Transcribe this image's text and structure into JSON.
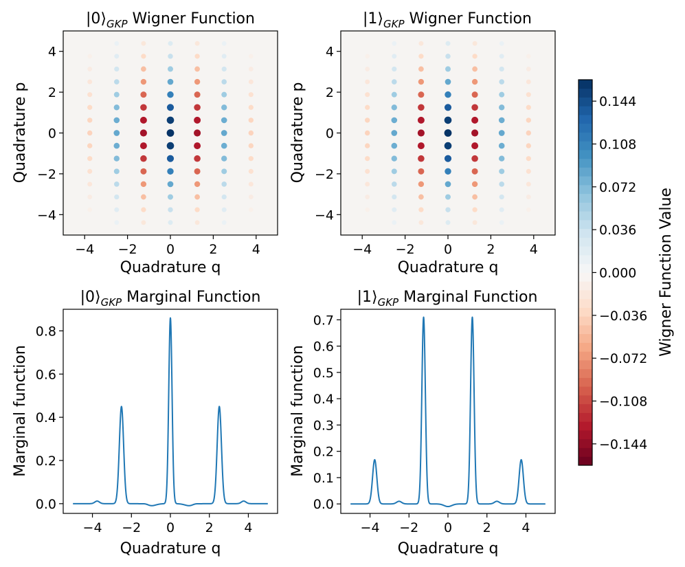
{
  "chart_data": [
    {
      "type": "heatmap",
      "title": "|0⟩GKP Wigner Function",
      "title_main": "|0⟩",
      "title_sub": "GKP",
      "title_rest": " Wigner Function",
      "xlabel": "Quadrature q",
      "ylabel": "Quadrature p",
      "xlim": [
        -5,
        5
      ],
      "ylim": [
        -5,
        5
      ],
      "xticks": [
        -4,
        -2,
        0,
        2,
        4
      ],
      "yticks": [
        -4,
        -2,
        0,
        2,
        4
      ],
      "q_period": 1.2533,
      "p_period": 0.6267,
      "envelope_sigma": 2.2,
      "peak_value": 0.16,
      "row_sign": "positive at even p-index",
      "column_sign": "positive at even q-index",
      "q_offset": 0
    },
    {
      "type": "heatmap",
      "title": "|1⟩GKP Wigner Function",
      "title_main": "|1⟩",
      "title_sub": "GKP",
      "title_rest": " Wigner Function",
      "xlabel": "Quadrature q",
      "ylabel": "Quadrature p",
      "xlim": [
        -5,
        5
      ],
      "ylim": [
        -5,
        5
      ],
      "xticks": [
        -4,
        -2,
        0,
        2,
        4
      ],
      "yticks": [
        -4,
        -2,
        0,
        2,
        4
      ],
      "q_period": 1.2533,
      "p_period": 0.6267,
      "envelope_sigma": 2.2,
      "peak_value": 0.16,
      "row_sign": "sign alternates with p-index",
      "column_sign": "q shifted so peaks at odd multiples",
      "q_offset": 0
    },
    {
      "type": "line",
      "title": "|0⟩GKP Marginal Function",
      "title_main": "|0⟩",
      "title_sub": "GKP",
      "title_rest": " Marginal Function",
      "xlabel": "Quadrature q",
      "ylabel": "Marginal function",
      "xlim": [
        -5.5,
        5.5
      ],
      "ylim": [
        -0.045,
        0.9
      ],
      "xticks": [
        -4,
        -2,
        0,
        2,
        4
      ],
      "yticks": [
        0.0,
        0.2,
        0.4,
        0.6,
        0.8
      ],
      "ytick_labels": [
        "0.0",
        "0.2",
        "0.4",
        "0.6",
        "0.8"
      ],
      "x_range": [
        -5,
        5
      ],
      "peaks": [
        {
          "q": -3.76,
          "height": 0.012,
          "width": 0.12
        },
        {
          "q": -2.51,
          "height": 0.45,
          "width": 0.11
        },
        {
          "q": -1.25,
          "height": 0.004,
          "width": 0.15
        },
        {
          "q": 0.0,
          "height": 0.86,
          "width": 0.085
        },
        {
          "q": 1.25,
          "height": 0.004,
          "width": 0.15
        },
        {
          "q": 2.51,
          "height": 0.45,
          "width": 0.11
        },
        {
          "q": 3.76,
          "height": 0.012,
          "width": 0.12
        }
      ],
      "dips": [
        {
          "q": -1.0,
          "depth": -0.01,
          "width": 0.25
        },
        {
          "q": 1.0,
          "depth": -0.01,
          "width": 0.25
        }
      ],
      "color": "#1f77b4"
    },
    {
      "type": "line",
      "title": "|1⟩GKP Marginal Function",
      "title_main": "|1⟩",
      "title_sub": "GKP",
      "title_rest": " Marginal Function",
      "xlabel": "Quadrature q",
      "ylabel": "Marginal function",
      "xlim": [
        -5.5,
        5.5
      ],
      "ylim": [
        -0.036,
        0.74
      ],
      "xticks": [
        -4,
        -2,
        0,
        2,
        4
      ],
      "yticks": [
        0.0,
        0.1,
        0.2,
        0.3,
        0.4,
        0.5,
        0.6,
        0.7
      ],
      "ytick_labels": [
        "0.0",
        "0.1",
        "0.2",
        "0.3",
        "0.4",
        "0.5",
        "0.6",
        "0.7"
      ],
      "x_range": [
        -5,
        5
      ],
      "peaks": [
        {
          "q": -3.76,
          "height": 0.168,
          "width": 0.11
        },
        {
          "q": -2.51,
          "height": 0.01,
          "width": 0.13
        },
        {
          "q": -1.25,
          "height": 0.71,
          "width": 0.09
        },
        {
          "q": 1.25,
          "height": 0.71,
          "width": 0.09
        },
        {
          "q": 2.51,
          "height": 0.01,
          "width": 0.13
        },
        {
          "q": 3.76,
          "height": 0.168,
          "width": 0.11
        }
      ],
      "dips": [
        {
          "q": 0.0,
          "depth": -0.01,
          "width": 0.2
        }
      ],
      "color": "#1f77b4"
    }
  ],
  "colorbar": {
    "label": "Wigner Function Value",
    "vmin": -0.162,
    "vmax": 0.162,
    "ticks": [
      0.144,
      0.108,
      0.072,
      0.036,
      0.0,
      -0.036,
      -0.072,
      -0.108,
      -0.144
    ],
    "tick_labels": [
      "0.144",
      "0.108",
      "0.072",
      "0.036",
      "0.000",
      "−0.036",
      "−0.072",
      "−0.108",
      "−0.144"
    ],
    "colormap": "RdBu",
    "color_stops": [
      "#67001f",
      "#b2182b",
      "#d6604d",
      "#f4a582",
      "#fddbc7",
      "#f7f7f7",
      "#d1e5f0",
      "#92c5de",
      "#4393c3",
      "#2166ac",
      "#053061"
    ]
  }
}
